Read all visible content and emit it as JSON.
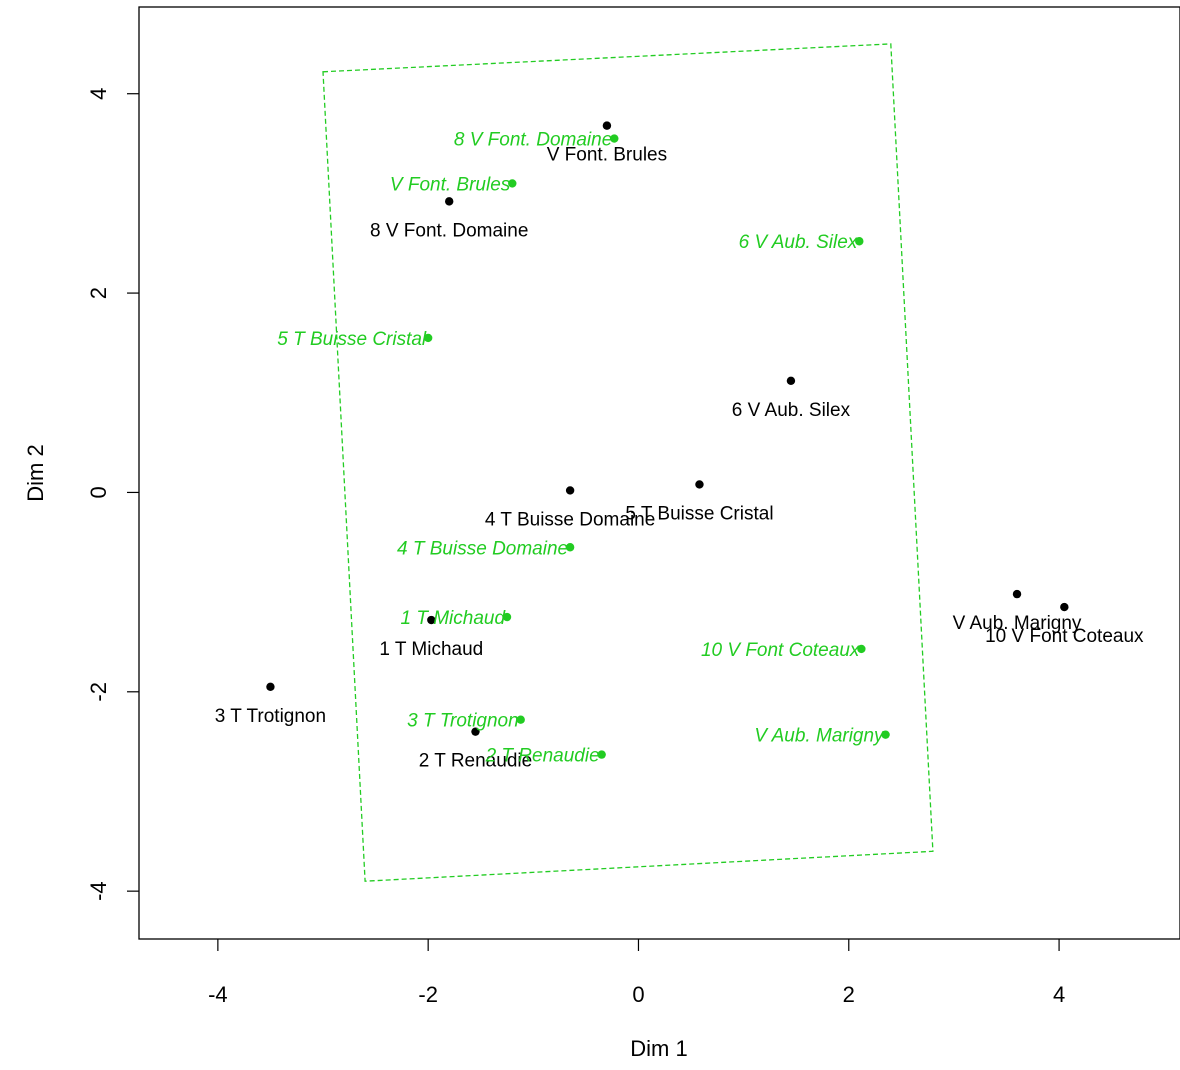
{
  "chart_data": {
    "type": "scatter",
    "title": "",
    "xlabel": "Dim 1",
    "ylabel": "Dim 2",
    "xlim": [
      -4.75,
      5.15
    ],
    "ylim": [
      -4.48,
      4.87
    ],
    "x_ticks": [
      -4,
      -2,
      0,
      2,
      4
    ],
    "y_ticks": [
      -4,
      -2,
      0,
      2,
      4
    ],
    "grid": false,
    "legend": "none",
    "series": [
      {
        "color": "#000000",
        "label_style": "normal",
        "points": [
          {
            "x": -0.3,
            "y": 3.68,
            "label": "V Font. Brules",
            "anchor": "middle",
            "dy": 1
          },
          {
            "x": -1.8,
            "y": 2.92,
            "label": "8 V Font. Domaine",
            "anchor": "end-shift",
            "dy": 1
          },
          {
            "x": 1.45,
            "y": 1.12,
            "label": "6 V Aub. Silex",
            "anchor": "middle",
            "dy": 1
          },
          {
            "x": -0.65,
            "y": 0.02,
            "label": "4 T Buisse Domaine",
            "anchor": "middle",
            "dy": 1
          },
          {
            "x": 0.58,
            "y": 0.08,
            "label": "5 T Buisse Cristal",
            "anchor": "middle",
            "dy": 1
          },
          {
            "x": 3.6,
            "y": -1.02,
            "label": "V Aub. Marigny",
            "anchor": "middle",
            "dy": 1
          },
          {
            "x": 4.05,
            "y": -1.15,
            "label": "10 V Font Coteaux",
            "anchor": "middle",
            "dy": 1
          },
          {
            "x": -1.97,
            "y": -1.28,
            "label": "1 T Michaud",
            "anchor": "middle",
            "dy": 1
          },
          {
            "x": -3.5,
            "y": -1.95,
            "label": "3 T Trotignon",
            "anchor": "middle",
            "dy": 1
          },
          {
            "x": -1.55,
            "y": -2.4,
            "label": "2 T Renaudie",
            "anchor": "middle",
            "dy": 1
          }
        ]
      },
      {
        "color": "#22cc22",
        "label_style": "italic",
        "points": [
          {
            "x": -0.23,
            "y": 3.55,
            "label": "8 V Font. Domaine",
            "anchor": "end",
            "dy": 0
          },
          {
            "x": -1.2,
            "y": 3.1,
            "label": "V Font. Brules",
            "anchor": "end",
            "dy": 0
          },
          {
            "x": 2.1,
            "y": 2.52,
            "label": "6 V Aub. Silex",
            "anchor": "end",
            "dy": 0
          },
          {
            "x": -2,
            "y": 1.55,
            "label": "5 T Buisse Cristal",
            "anchor": "end",
            "dy": 0
          },
          {
            "x": -0.65,
            "y": -0.55,
            "label": "4 T Buisse Domaine",
            "anchor": "end",
            "dy": 0
          },
          {
            "x": -1.25,
            "y": -1.25,
            "label": "1 T Michaud",
            "anchor": "end",
            "dy": 0
          },
          {
            "x": 2.12,
            "y": -1.57,
            "label": "10 V Font Coteaux",
            "anchor": "end",
            "dy": 0
          },
          {
            "x": -1.12,
            "y": -2.28,
            "label": "3 T Trotignon",
            "anchor": "end",
            "dy": 0
          },
          {
            "x": 2.35,
            "y": -2.43,
            "label": "V Aub. Marigny",
            "anchor": "end",
            "dy": 0
          },
          {
            "x": -0.35,
            "y": -2.63,
            "label": "2 T Renaudie",
            "anchor": "end",
            "dy": 0
          }
        ]
      }
    ],
    "envelope": {
      "color": "#22cc22",
      "style": "dashed",
      "corners": [
        {
          "x": -3,
          "y": 4.22
        },
        {
          "x": 2.4,
          "y": 4.5
        },
        {
          "x": 2.8,
          "y": -3.6
        },
        {
          "x": -2.6,
          "y": -3.9
        }
      ]
    }
  }
}
